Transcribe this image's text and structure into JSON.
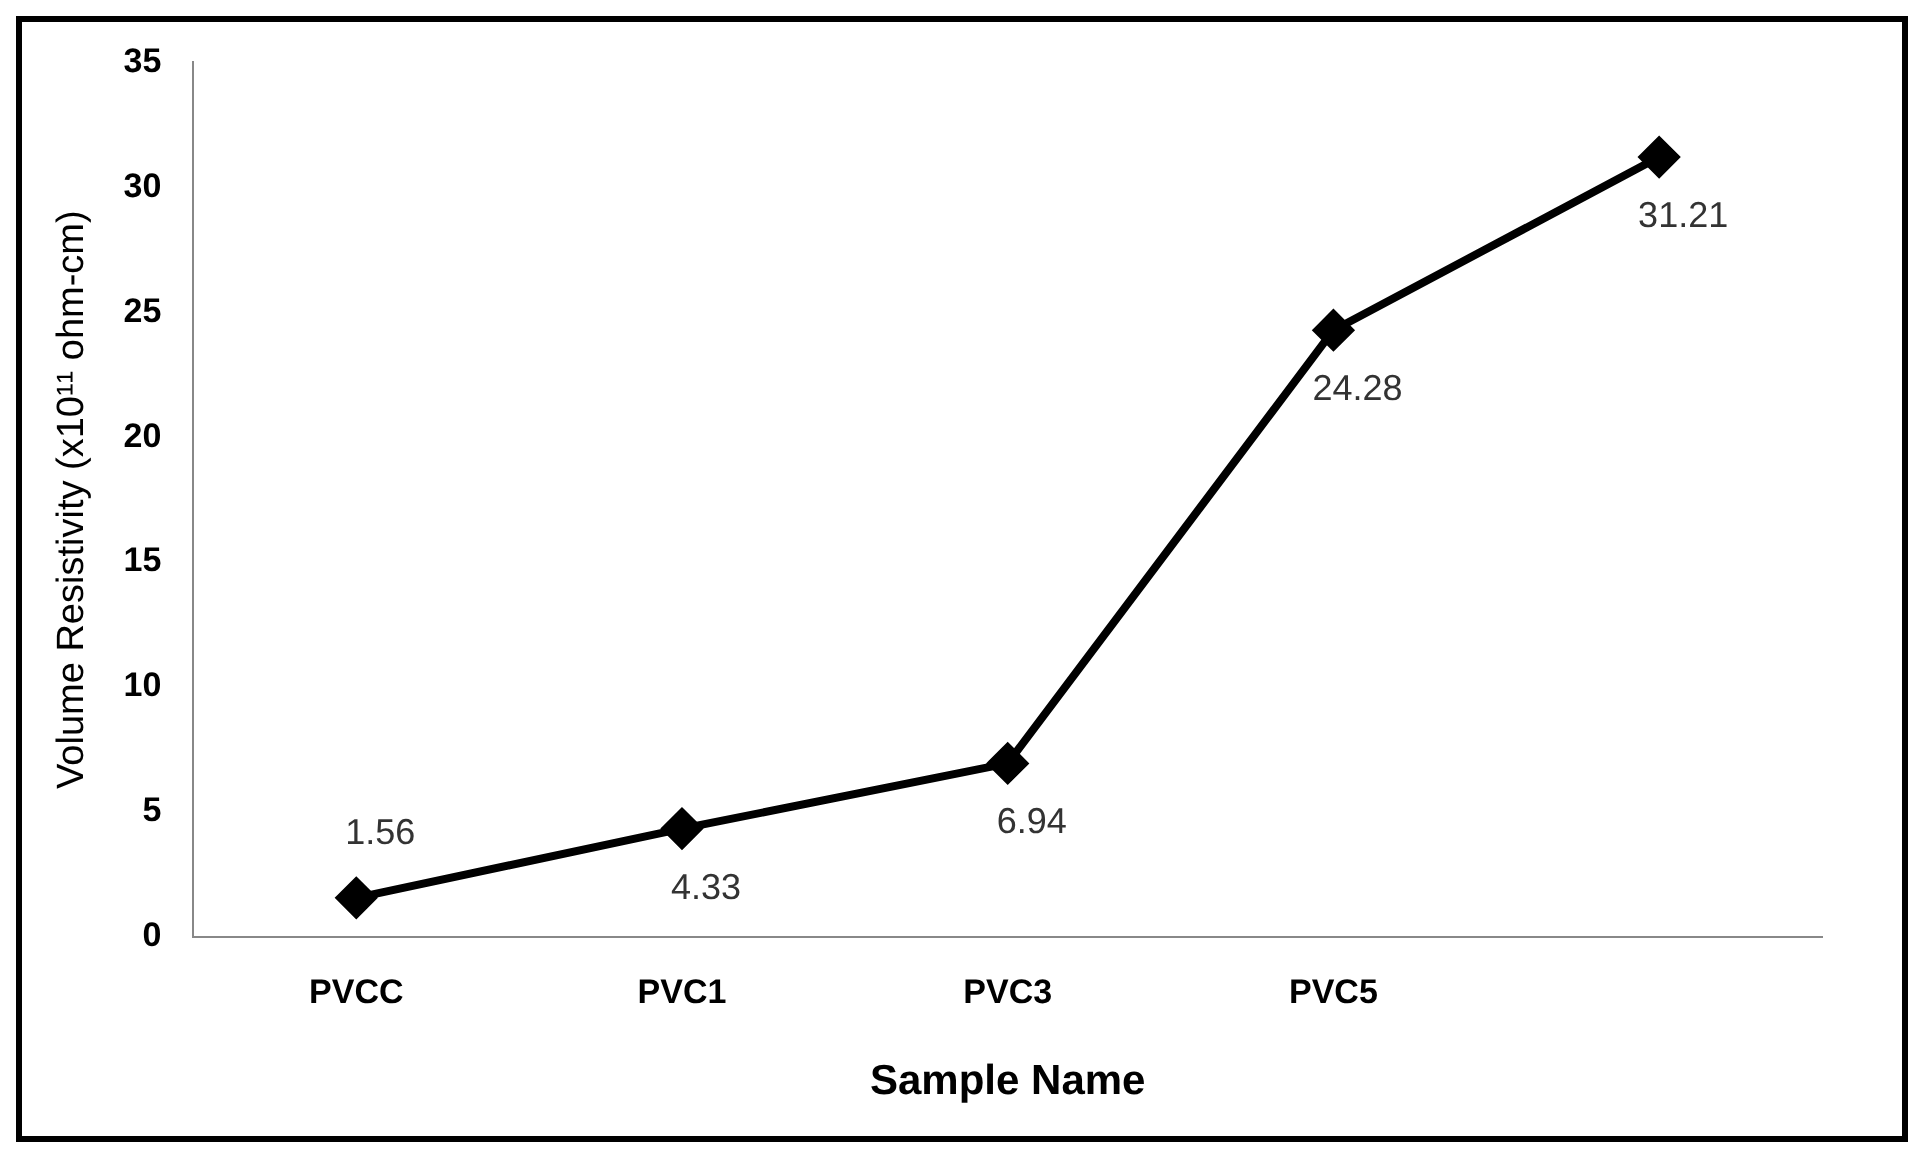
{
  "chart_data": {
    "type": "line",
    "xlabel": "Sample Name",
    "ylabel": "Volume Resistivity (x10¹¹ ohm-cm)",
    "categories": [
      "PVCC",
      "PVC1",
      "PVC3",
      "PVC5",
      null
    ],
    "series": [
      {
        "color": "#000000",
        "values": [
          1.56,
          4.33,
          6.94,
          24.28,
          31.21
        ]
      }
    ],
    "ylim": [
      0,
      35
    ],
    "yticks": [
      0,
      5,
      10,
      15,
      20,
      25,
      30,
      35
    ],
    "grid": false,
    "legend": false,
    "marker": "diamond",
    "line_style": "solid",
    "data_labels": true
  }
}
